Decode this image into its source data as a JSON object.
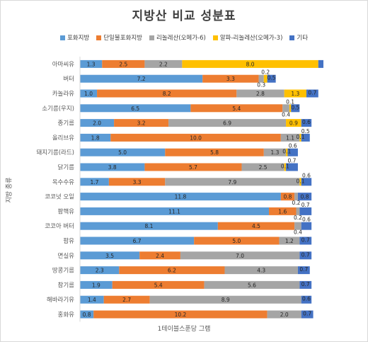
{
  "chart_data": {
    "type": "bar",
    "orientation": "horizontal",
    "stacked": true,
    "title": "지방산 비교 성분표",
    "xlabel": "1테이블스푼당 그램",
    "ylabel": "지방 종류",
    "legend_position": "top",
    "grid": false,
    "categories": [
      "아마씨유",
      "버터",
      "카놀라유",
      "소기름(우지)",
      "종기름",
      "올리브유",
      "돼지기름(라드)",
      "닭기름",
      "옥수수유",
      "코코넛 오일",
      "팜핵유",
      "코코아 버터",
      "팜유",
      "면실유",
      "땅콩기름",
      "참기름",
      "해바라기유",
      "홍화유"
    ],
    "category_labels": [
      "아마씨유",
      "버터",
      "카놀라유",
      "소기름(우지)",
      "종기름",
      "올리브유",
      "돼지기름(라드)",
      "닭기름",
      "옥수수유",
      "코코넛 오일",
      "팜핵유",
      "코코아 버터",
      "팜유",
      "면실유",
      "땅콩기름",
      "참기름",
      "해바라기유",
      "홍화유"
    ],
    "series": [
      {
        "name": "포화지방",
        "color": "#5b9bd5",
        "values": [
          1.3,
          7.2,
          1.0,
          6.5,
          2.0,
          1.8,
          5.0,
          3.8,
          1.7,
          11.8,
          11.1,
          8.1,
          6.7,
          3.5,
          2.3,
          1.9,
          1.4,
          0.8
        ]
      },
      {
        "name": "단일불포화지방",
        "color": "#ed7d31",
        "values": [
          2.5,
          3.3,
          8.2,
          5.4,
          3.2,
          10.0,
          5.8,
          5.7,
          3.3,
          0.8,
          1.6,
          4.5,
          5.0,
          2.4,
          6.2,
          5.4,
          2.7,
          10.2
        ]
      },
      {
        "name": "리놀레산(오메가-6)",
        "color": "#a5a5a5",
        "values": [
          2.2,
          0.3,
          2.8,
          0.4,
          6.9,
          1.1,
          1.3,
          2.5,
          7.9,
          0.2,
          0.2,
          0.4,
          1.2,
          7.0,
          4.3,
          5.6,
          8.9,
          2.0
        ]
      },
      {
        "name": "알파-리놀레산(오메가-3)",
        "color": "#ffc000",
        "values": [
          8.0,
          0.2,
          1.3,
          0.1,
          0.9,
          0.1,
          0.1,
          0.1,
          0.1,
          0,
          0,
          0,
          0,
          0,
          0,
          0,
          0,
          0
        ]
      },
      {
        "name": "기타",
        "color": "#4472c4",
        "values": [
          0.3,
          0.5,
          0.7,
          0.5,
          0.6,
          0.5,
          0.6,
          0.7,
          0.6,
          0.8,
          0.7,
          0.6,
          0.7,
          0.7,
          0.7,
          0.7,
          0.6,
          0.7
        ]
      }
    ],
    "labels": [
      [
        "1.3",
        "2.5",
        "2.2",
        "8.0",
        ""
      ],
      [
        "7.2",
        "3.3",
        "0.3",
        "0.2",
        "0.5"
      ],
      [
        "1.0",
        "8.2",
        "2.8",
        "1.3",
        "0.7"
      ],
      [
        "6.5",
        "5.4",
        "0.4",
        "0.1",
        "0.5"
      ],
      [
        "2.0",
        "3.2",
        "6.9",
        "0.9",
        "0.6"
      ],
      [
        "1.8",
        "10.0",
        "1.1",
        "0.1",
        "0.5"
      ],
      [
        "5.0",
        "5.8",
        "1.3",
        "0.1",
        "0.6"
      ],
      [
        "3.8",
        "5.7",
        "2.5",
        "0.1",
        "0.7"
      ],
      [
        "1.7",
        "3.3",
        "7.9",
        "0.1",
        "0.6"
      ],
      [
        "11.8",
        "0.8",
        "0.2",
        "",
        "0.8"
      ],
      [
        "11.1",
        "1.6",
        "0.2",
        "",
        "0.7"
      ],
      [
        "8.1",
        "4.5",
        "0.4",
        "",
        "0.6"
      ],
      [
        "6.7",
        "5.0",
        "1.2",
        "",
        "0.7"
      ],
      [
        "3.5",
        "2.4",
        "7.0",
        "",
        "0.7"
      ],
      [
        "2.3",
        "6.2",
        "4.3",
        "",
        "0.7"
      ],
      [
        "1.9",
        "5.4",
        "5.6",
        "",
        "0.7"
      ],
      [
        "1.4",
        "2.7",
        "8.9",
        "",
        "0.6"
      ],
      [
        "0.8",
        "10.2",
        "2.0",
        "",
        "0.7"
      ]
    ]
  }
}
